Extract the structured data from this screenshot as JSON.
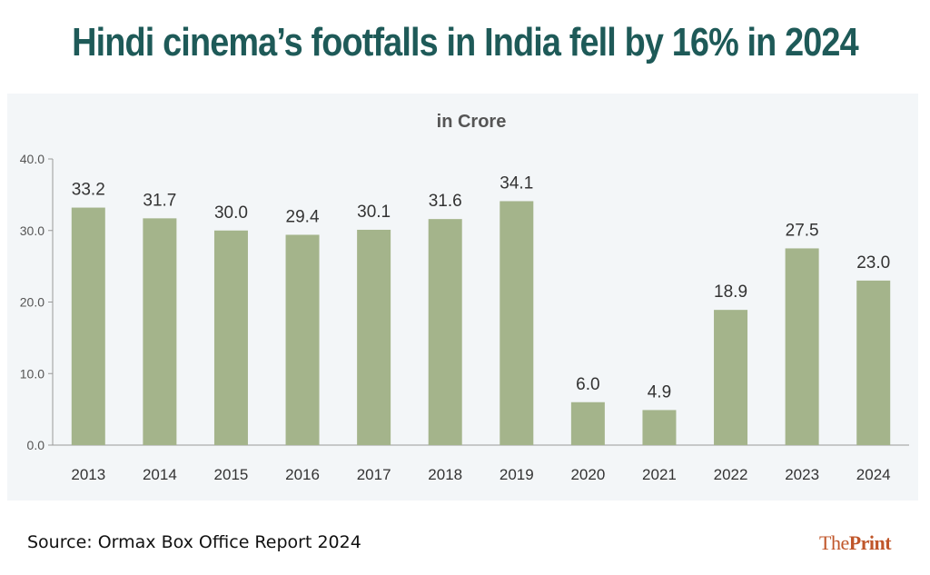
{
  "title": "Hindi cinema’s footfalls in India fell by 16% in 2024",
  "source": "Source:  Ormax Box Office Report 2024",
  "logo": {
    "part1": "The",
    "part2": "Print"
  },
  "colors": {
    "title": "#1e5a58",
    "bar": "#a4b48b",
    "panel": "#f3f6f8",
    "logo": "#c0562a"
  },
  "chart_data": {
    "type": "bar",
    "subtitle": "in Crore",
    "categories": [
      "2013",
      "2014",
      "2015",
      "2016",
      "2017",
      "2018",
      "2019",
      "2020",
      "2021",
      "2022",
      "2023",
      "2024"
    ],
    "values": [
      33.2,
      31.7,
      30.0,
      29.4,
      30.1,
      31.6,
      34.1,
      6.0,
      4.9,
      18.9,
      27.5,
      23.0
    ],
    "data_labels": [
      "33.2",
      "31.7",
      "30.0",
      "29.4",
      "30.1",
      "31.6",
      "34.1",
      "6.0",
      "4.9",
      "18.9",
      "27.5",
      "23.0"
    ],
    "yticks": [
      "0.0",
      "10.0",
      "20.0",
      "30.0",
      "40.0"
    ],
    "ylim": [
      0,
      40
    ],
    "grid": false,
    "legend": "none"
  }
}
